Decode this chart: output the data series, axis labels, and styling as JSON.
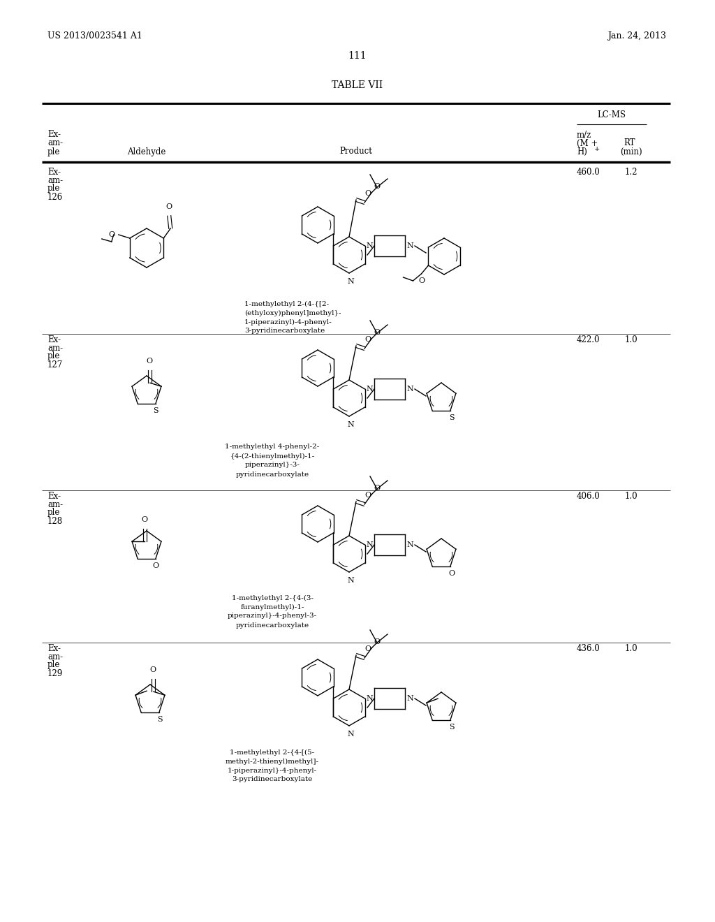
{
  "page_number": "111",
  "patent_number": "US 2013/0023541 A1",
  "patent_date": "Jan. 24, 2013",
  "table_title": "TABLE VII",
  "lcms_header": "LC-MS",
  "rows": [
    {
      "example": "126",
      "mz": "460.0",
      "rt": "1.2",
      "product_name": "1-methylethyl 2-(4-{[2-\n(ethyloxy)phenyl]methyl}-\n1-piperazinyl)-4-phenyl-\n3-pyridinecarboxylate"
    },
    {
      "example": "127",
      "mz": "422.0",
      "rt": "1.0",
      "product_name": "1-methylethyl 4-phenyl-2-\n{4-(2-thienylmethyl)-1-\npiperazinyl}-3-\npyridinecarboxylate"
    },
    {
      "example": "128",
      "mz": "406.0",
      "rt": "1.0",
      "product_name": "1-methylethyl 2-{4-(3-\nfuranylmethyl)-1-\npiperazinyl}-4-phenyl-3-\npyridinecarboxylate"
    },
    {
      "example": "129",
      "mz": "436.0",
      "rt": "1.0",
      "product_name": "1-methylethyl 2-{4-[(5-\nmethyl-2-thienyl)methyl]-\n1-piperazinyl}-4-phenyl-\n3-pyridinecarboxylate"
    }
  ],
  "background_color": "#ffffff",
  "text_color": "#000000"
}
